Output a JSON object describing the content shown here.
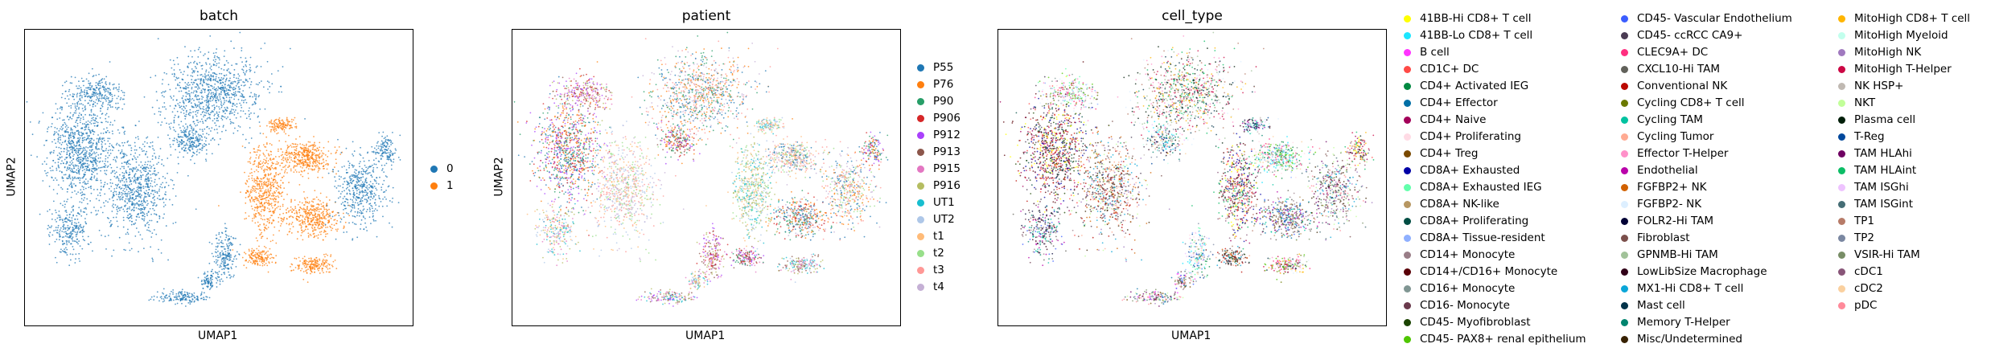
{
  "chart_data": [
    {
      "type": "scatter",
      "title": "batch",
      "xlabel": "UMAP1",
      "ylabel": "UMAP2",
      "grid": false,
      "legend_placement": "right",
      "legend": [
        {
          "name": "0",
          "color": "#1f77b4"
        },
        {
          "name": "1",
          "color": "#ff7f0e"
        }
      ]
    },
    {
      "type": "scatter",
      "title": "patient",
      "xlabel": "UMAP1",
      "ylabel": "UMAP2",
      "grid": false,
      "legend_placement": "right",
      "legend": [
        {
          "name": "P55",
          "color": "#1f77b4"
        },
        {
          "name": "P76",
          "color": "#ff7f0e"
        },
        {
          "name": "P90",
          "color": "#279e68"
        },
        {
          "name": "P906",
          "color": "#d62728"
        },
        {
          "name": "P912",
          "color": "#aa40fc"
        },
        {
          "name": "P913",
          "color": "#8c564b"
        },
        {
          "name": "P915",
          "color": "#e377c2"
        },
        {
          "name": "P916",
          "color": "#b5bd61"
        },
        {
          "name": "UT1",
          "color": "#17becf"
        },
        {
          "name": "UT2",
          "color": "#aec7e8"
        },
        {
          "name": "t1",
          "color": "#ffbb78"
        },
        {
          "name": "t2",
          "color": "#98df8a"
        },
        {
          "name": "t3",
          "color": "#ff9896"
        },
        {
          "name": "t4",
          "color": "#c5b0d5"
        }
      ]
    },
    {
      "type": "scatter",
      "title": "cell_type",
      "xlabel": "UMAP1",
      "ylabel": "",
      "grid": false,
      "legend_placement": "right",
      "legend": [
        {
          "name": "41BB-Hi CD8+ T cell",
          "color": "#ffff00"
        },
        {
          "name": "41BB-Lo CD8+ T cell",
          "color": "#1ce6ff"
        },
        {
          "name": "B cell",
          "color": "#ff34ff"
        },
        {
          "name": "CD1C+ DC",
          "color": "#ff4a46"
        },
        {
          "name": "CD4+ Activated IEG",
          "color": "#008941"
        },
        {
          "name": "CD4+ Effector",
          "color": "#006fa6"
        },
        {
          "name": "CD4+ Naive",
          "color": "#a30059"
        },
        {
          "name": "CD4+ Proliferating",
          "color": "#ffdbe5"
        },
        {
          "name": "CD4+ Treg",
          "color": "#7a4900"
        },
        {
          "name": "CD8A+ Exhausted",
          "color": "#0000a6"
        },
        {
          "name": "CD8A+ Exhausted IEG",
          "color": "#63ffac"
        },
        {
          "name": "CD8A+ NK-like",
          "color": "#b79762"
        },
        {
          "name": "CD8A+ Proliferating",
          "color": "#004d43"
        },
        {
          "name": "CD8A+ Tissue-resident",
          "color": "#8fb0ff"
        },
        {
          "name": "CD14+ Monocyte",
          "color": "#997d87"
        },
        {
          "name": "CD14+/CD16+ Monocyte",
          "color": "#5a0007"
        },
        {
          "name": "CD16+ Monocyte",
          "color": "#809693"
        },
        {
          "name": "CD16- Monocyte",
          "color": "#6a3a4c"
        },
        {
          "name": "CD45- Myofibroblast",
          "color": "#1b4400"
        },
        {
          "name": "CD45- PAX8+ renal epithelium",
          "color": "#4fc601"
        },
        {
          "name": "CD45- Vascular Endothelium",
          "color": "#3b5dff"
        },
        {
          "name": "CD45- ccRCC CA9+",
          "color": "#4a3b53"
        },
        {
          "name": "CLEC9A+ DC",
          "color": "#ff2f80"
        },
        {
          "name": "CXCL10-Hi TAM",
          "color": "#61615a"
        },
        {
          "name": "Conventional NK",
          "color": "#ba0900"
        },
        {
          "name": "Cycling CD8+ T cell",
          "color": "#6b7900"
        },
        {
          "name": "Cycling TAM",
          "color": "#00c2a0"
        },
        {
          "name": "Cycling Tumor",
          "color": "#ffaa92"
        },
        {
          "name": "Effector T-Helper",
          "color": "#ff90c9"
        },
        {
          "name": "Endothelial",
          "color": "#b903aa"
        },
        {
          "name": "FGFBP2+ NK",
          "color": "#d16100"
        },
        {
          "name": "FGFBP2- NK",
          "color": "#ddefff"
        },
        {
          "name": "FOLR2-Hi TAM",
          "color": "#000035"
        },
        {
          "name": "Fibroblast",
          "color": "#7b4f4b"
        },
        {
          "name": "GPNMB-Hi TAM",
          "color": "#a1c299"
        },
        {
          "name": "LowLibSize Macrophage",
          "color": "#300018"
        },
        {
          "name": "MX1-Hi CD8+ T cell",
          "color": "#0aa6d8"
        },
        {
          "name": "Mast cell",
          "color": "#013349"
        },
        {
          "name": "Memory T-Helper",
          "color": "#00846f"
        },
        {
          "name": "Misc/Undetermined",
          "color": "#372101"
        },
        {
          "name": "MitoHigh CD8+ T cell",
          "color": "#ffb500"
        },
        {
          "name": "MitoHigh Myeloid",
          "color": "#c2ffed"
        },
        {
          "name": "MitoHigh NK",
          "color": "#a079bf"
        },
        {
          "name": "MitoHigh T-Helper",
          "color": "#cc0744"
        },
        {
          "name": "NK HSP+",
          "color": "#c0b9b2"
        },
        {
          "name": "NKT",
          "color": "#c2ff99"
        },
        {
          "name": "Plasma cell",
          "color": "#001e09"
        },
        {
          "name": "T-Reg",
          "color": "#00489c"
        },
        {
          "name": "TAM HLAhi",
          "color": "#6f0062"
        },
        {
          "name": "TAM HLAint",
          "color": "#0cbd66"
        },
        {
          "name": "TAM ISGhi",
          "color": "#eec3ff"
        },
        {
          "name": "TAM ISGint",
          "color": "#456d75"
        },
        {
          "name": "TP1",
          "color": "#b77b68"
        },
        {
          "name": "TP2",
          "color": "#7a87a1"
        },
        {
          "name": "VSIR-Hi TAM",
          "color": "#788d66"
        },
        {
          "name": "cDC1",
          "color": "#885578"
        },
        {
          "name": "cDC2",
          "color": "#fad09f"
        },
        {
          "name": "pDC",
          "color": "#ff8a9a"
        }
      ]
    }
  ]
}
